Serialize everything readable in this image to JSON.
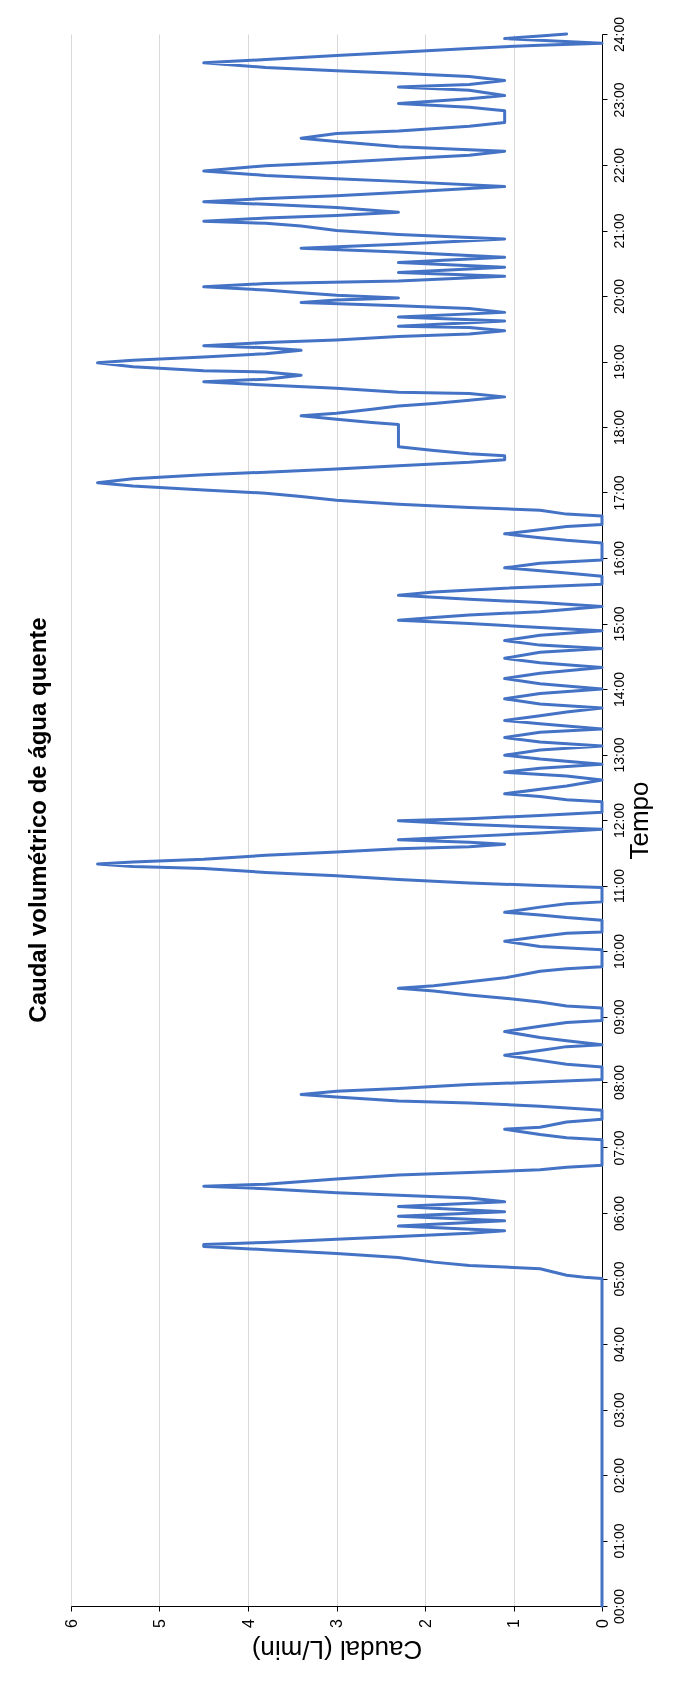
{
  "chart_data": {
    "type": "line",
    "orientation": "horizontal",
    "title": "Caudal volumétrico de água quente",
    "ylabel": "Tempo",
    "xlabel": "Caudal (L/min)",
    "ylim": [
      0,
      24
    ],
    "xlim": [
      6,
      0
    ],
    "yticks": [
      {
        "value": 0,
        "label": "00:00"
      },
      {
        "value": 1,
        "label": "01:00"
      },
      {
        "value": 2,
        "label": "02:00"
      },
      {
        "value": 3,
        "label": "03:00"
      },
      {
        "value": 4,
        "label": "04:00"
      },
      {
        "value": 5,
        "label": "05:00"
      },
      {
        "value": 6,
        "label": "06:00"
      },
      {
        "value": 7,
        "label": "07:00"
      },
      {
        "value": 8,
        "label": "08:00"
      },
      {
        "value": 9,
        "label": "09:00"
      },
      {
        "value": 10,
        "label": "10:00"
      },
      {
        "value": 11,
        "label": "11:00"
      },
      {
        "value": 12,
        "label": "12:00"
      },
      {
        "value": 13,
        "label": "13:00"
      },
      {
        "value": 14,
        "label": "14:00"
      },
      {
        "value": 15,
        "label": "15:00"
      },
      {
        "value": 16,
        "label": "16:00"
      },
      {
        "value": 17,
        "label": "17:00"
      },
      {
        "value": 18,
        "label": "18:00"
      },
      {
        "value": 19,
        "label": "19:00"
      },
      {
        "value": 20,
        "label": "20:00"
      },
      {
        "value": 21,
        "label": "21:00"
      },
      {
        "value": 22,
        "label": "22:00"
      },
      {
        "value": 23,
        "label": "23:00"
      },
      {
        "value": 24,
        "label": "24:00"
      }
    ],
    "xticks": [
      0,
      1,
      2,
      3,
      4,
      5,
      6
    ],
    "grid": "x",
    "line_style": "solid",
    "series": [
      {
        "color": "#4472c4",
        "x": [
          0,
          5.0,
          5.02,
          5.05,
          5.15,
          5.2,
          5.25,
          5.32,
          5.38,
          5.44,
          5.49,
          5.52,
          5.55,
          5.6,
          5.64,
          5.69,
          5.73,
          5.8,
          5.88,
          5.95,
          6.02,
          6.1,
          6.17,
          6.23,
          6.27,
          6.31,
          6.37,
          6.41,
          6.44,
          6.52,
          6.58,
          6.62,
          6.66,
          6.7,
          6.73,
          7.12,
          7.15,
          7.2,
          7.28,
          7.31,
          7.39,
          7.43,
          7.57,
          7.63,
          7.68,
          7.71,
          7.77,
          7.81,
          7.86,
          7.9,
          7.96,
          8.0,
          8.04,
          8.23,
          8.27,
          8.33,
          8.41,
          8.48,
          8.54,
          8.57,
          8.63,
          8.68,
          8.77,
          8.85,
          8.91,
          8.94,
          9.13,
          9.16,
          9.22,
          9.28,
          9.33,
          9.39,
          9.43,
          9.47,
          9.53,
          9.59,
          9.69,
          9.73,
          9.76,
          10.02,
          10.07,
          10.15,
          10.22,
          10.27,
          10.29,
          10.47,
          10.51,
          10.55,
          10.59,
          10.67,
          10.72,
          10.75,
          10.97,
          11.0,
          11.04,
          11.09,
          11.15,
          11.2,
          11.26,
          11.29,
          11.33,
          11.36,
          11.4,
          11.46,
          11.51,
          11.56,
          11.59,
          11.63,
          11.66,
          11.7,
          11.75,
          11.8,
          11.86,
          11.93,
          11.99,
          12.02,
          12.07,
          12.12,
          12.28,
          12.31,
          12.36,
          12.4,
          12.47,
          12.52,
          12.61,
          12.67,
          12.73,
          12.79,
          12.85,
          12.93,
          12.99,
          13.07,
          13.13,
          13.19,
          13.26,
          13.34,
          13.39,
          13.47,
          13.52,
          13.59,
          13.65,
          13.71,
          13.77,
          13.85,
          13.93,
          14.0,
          14.08,
          14.16,
          14.24,
          14.33,
          14.4,
          14.47,
          14.56,
          14.62,
          14.67,
          14.74,
          14.82,
          14.89,
          14.94,
          15.0,
          15.05,
          15.09,
          15.13,
          15.18,
          15.26,
          15.32,
          15.37,
          15.43,
          15.48,
          15.54,
          15.6,
          15.72,
          15.77,
          15.85,
          15.92,
          15.97,
          16.23,
          16.27,
          16.31,
          16.37,
          16.43,
          16.48,
          16.51,
          16.64,
          16.67,
          16.73,
          16.77,
          16.82,
          16.88,
          16.94,
          16.99,
          17.04,
          17.1,
          17.15,
          17.21,
          17.27,
          17.31,
          17.36,
          17.41,
          17.46,
          17.5,
          17.56,
          17.59,
          17.64,
          17.7,
          18.04,
          18.07,
          18.12,
          18.17,
          18.21,
          18.27,
          18.32,
          18.36,
          18.41,
          18.46,
          18.51,
          18.53,
          18.59,
          18.64,
          18.69,
          18.73,
          18.79,
          18.84,
          18.86,
          18.92,
          18.98,
          19.02,
          19.07,
          19.12,
          19.17,
          19.21,
          19.24,
          19.29,
          19.33,
          19.38,
          19.42,
          19.47,
          19.52,
          19.54,
          19.62,
          19.68,
          19.75,
          19.81,
          19.85,
          19.9,
          19.94,
          19.97,
          20.01,
          20.05,
          20.09,
          20.14,
          20.19,
          20.23,
          20.3,
          20.36,
          20.44,
          20.51,
          20.59,
          20.67,
          20.73,
          20.79,
          20.87,
          20.94,
          21.0,
          21.07,
          21.11,
          21.14,
          21.19,
          21.23,
          21.28,
          21.35,
          21.4,
          21.44,
          21.49,
          21.53,
          21.58,
          21.67,
          21.75,
          21.79,
          21.84,
          21.91,
          21.99,
          22.04,
          22.09,
          22.15,
          22.21,
          22.28,
          22.36,
          22.41,
          22.48,
          22.52,
          22.59,
          22.65,
          22.83,
          22.88,
          22.94,
          23.01,
          23.06,
          23.14,
          23.19,
          23.23,
          23.29,
          23.35,
          23.4,
          23.44,
          23.49,
          23.56,
          23.61,
          23.67,
          23.72,
          23.78,
          23.83,
          23.86,
          23.93,
          23.97,
          24.0
        ],
        "values": [
          0,
          0,
          0.2,
          0.4,
          0.7,
          1.5,
          1.9,
          2.3,
          3.0,
          3.8,
          4.5,
          4.5,
          3.8,
          3.0,
          2.3,
          1.5,
          1.1,
          2.3,
          1.1,
          2.3,
          1.1,
          2.3,
          1.1,
          1.5,
          2.3,
          3.0,
          3.8,
          4.5,
          3.8,
          3.0,
          2.3,
          1.5,
          0.7,
          0.4,
          0,
          0,
          0.4,
          0.7,
          1.1,
          0.7,
          0.4,
          0,
          0,
          0.7,
          1.5,
          2.3,
          3.0,
          3.4,
          3.0,
          2.3,
          1.5,
          0.7,
          0,
          0,
          0.4,
          0.7,
          1.1,
          0.7,
          0.4,
          0,
          0.4,
          0.7,
          1.1,
          0.7,
          0.4,
          0,
          0,
          0.4,
          0.7,
          1.1,
          1.5,
          1.9,
          2.3,
          1.9,
          1.5,
          1.1,
          0.7,
          0.4,
          0,
          0,
          0.7,
          1.1,
          0.7,
          0.4,
          0,
          0,
          0.4,
          0.7,
          1.1,
          0.7,
          0.4,
          0,
          0,
          0.7,
          1.5,
          2.3,
          3.0,
          3.8,
          4.5,
          5.3,
          5.7,
          5.3,
          4.5,
          3.8,
          3.0,
          2.3,
          1.5,
          1.1,
          1.5,
          2.3,
          1.5,
          0.7,
          0,
          1.5,
          2.3,
          1.5,
          0.7,
          0,
          0,
          0.4,
          0.7,
          1.1,
          0.7,
          0.4,
          0,
          0.4,
          1.1,
          0.7,
          0,
          0.7,
          1.1,
          0.7,
          0,
          0.7,
          1.1,
          0.7,
          0,
          0.7,
          1.1,
          0.7,
          0.4,
          0,
          0.7,
          1.1,
          0.7,
          0,
          0.7,
          1.1,
          0.7,
          0,
          0.7,
          1.1,
          0.7,
          0,
          0.7,
          1.1,
          0.7,
          0,
          0.7,
          1.5,
          2.3,
          1.9,
          1.5,
          0.7,
          0,
          0.7,
          1.5,
          2.3,
          1.9,
          1.1,
          0,
          0,
          0.4,
          1.1,
          0.7,
          0,
          0,
          0.4,
          0.7,
          1.1,
          0.7,
          0.4,
          0,
          0,
          0.4,
          0.7,
          1.5,
          2.3,
          3.0,
          3.4,
          3.8,
          4.5,
          5.3,
          5.7,
          5.3,
          4.5,
          3.8,
          3.0,
          2.3,
          1.5,
          1.1,
          1.1,
          1.5,
          1.9,
          2.3,
          2.3,
          2.6,
          3.0,
          3.4,
          3.0,
          2.6,
          2.3,
          1.9,
          1.5,
          1.1,
          1.5,
          2.3,
          3.0,
          3.8,
          4.5,
          3.8,
          3.4,
          3.8,
          4.5,
          5.3,
          5.7,
          5.3,
          4.5,
          3.8,
          3.4,
          3.8,
          4.5,
          3.8,
          3.0,
          2.3,
          1.5,
          1.1,
          1.5,
          2.3,
          1.1,
          2.3,
          1.1,
          1.5,
          2.3,
          3.4,
          3.0,
          2.3,
          3.0,
          3.4,
          3.8,
          4.5,
          3.8,
          2.3,
          1.1,
          2.3,
          1.1,
          2.3,
          1.1,
          2.3,
          3.4,
          2.3,
          1.1,
          2.3,
          3.0,
          3.4,
          3.8,
          4.5,
          3.8,
          3.0,
          2.3,
          3.0,
          3.8,
          4.5,
          3.8,
          3.0,
          2.3,
          1.1,
          2.3,
          3.0,
          3.8,
          4.5,
          3.8,
          3.0,
          2.3,
          1.5,
          1.1,
          2.3,
          3.0,
          3.4,
          3.0,
          2.3,
          1.5,
          1.1,
          1.1,
          1.5,
          2.3,
          1.5,
          1.1,
          1.5,
          2.3,
          1.5,
          1.1,
          1.5,
          2.3,
          3.0,
          3.8,
          4.5,
          3.8,
          3.0,
          2.3,
          1.5,
          0.7,
          0,
          1.1,
          0.7,
          0.4
        ]
      }
    ]
  }
}
